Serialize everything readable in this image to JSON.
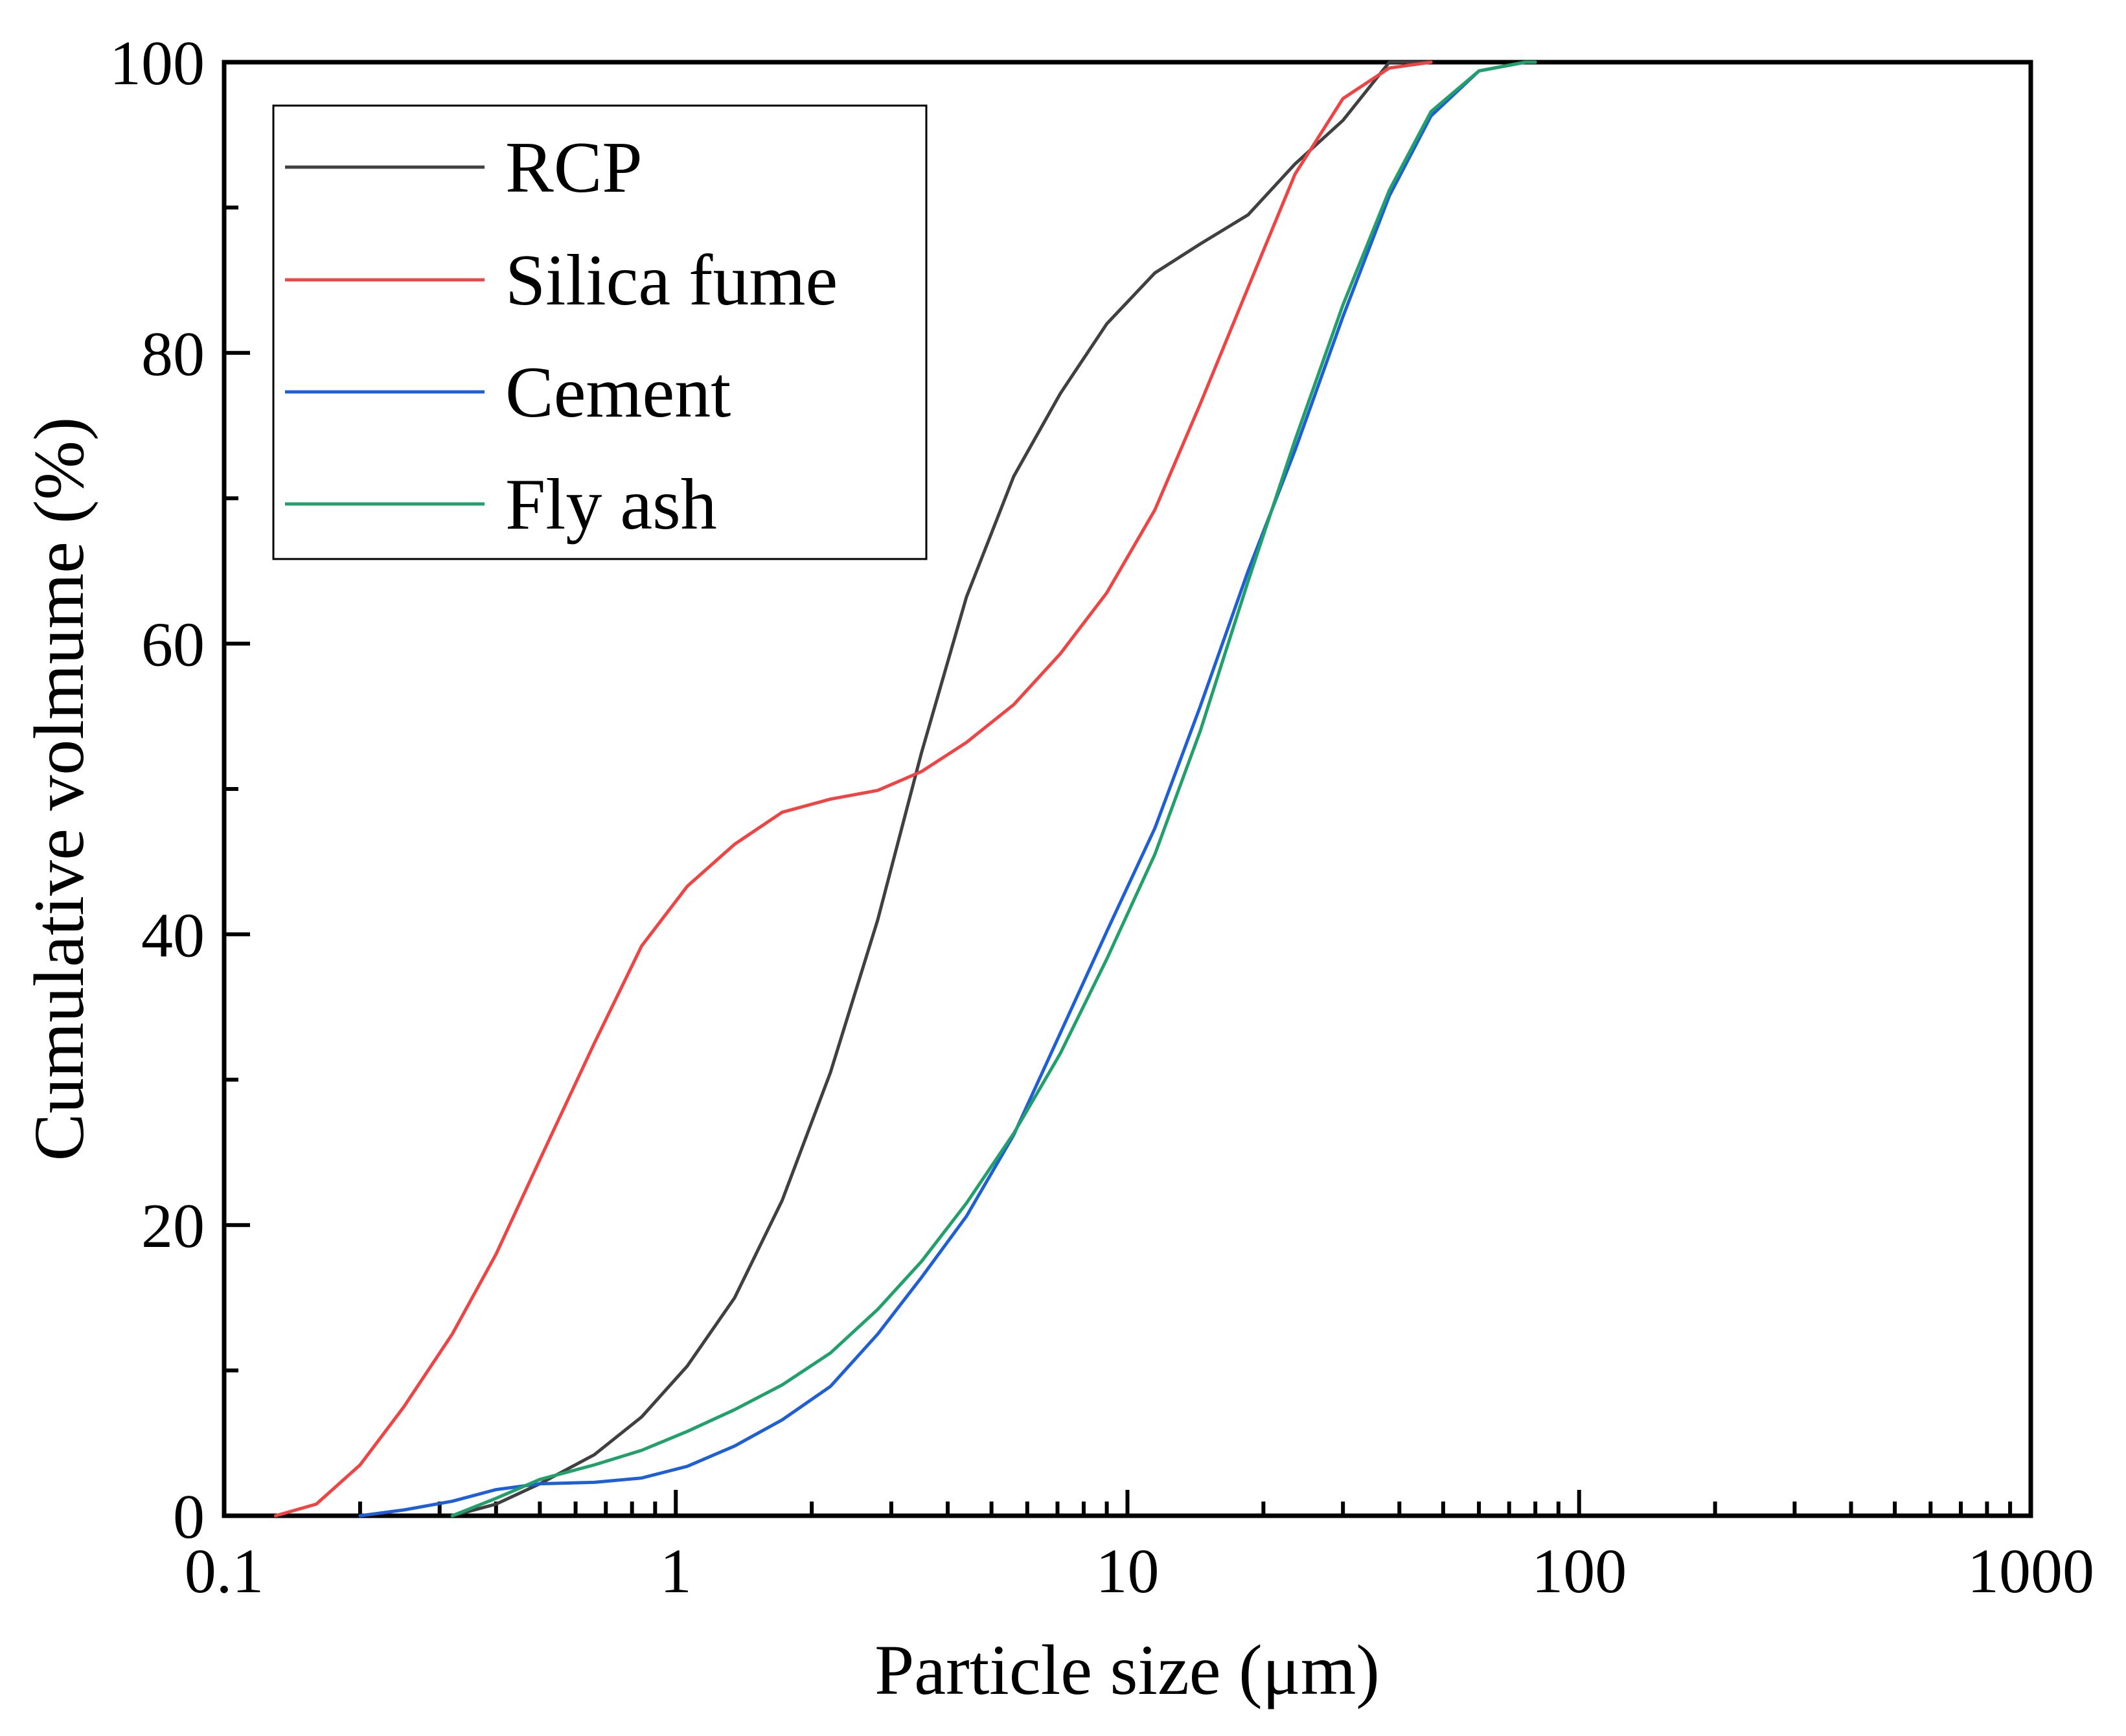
{
  "chart_data": {
    "type": "line",
    "xlabel": "Particle size (μm)",
    "ylabel": "Cumulative volmume (%)",
    "x_scale": "log",
    "xlim": [
      0.1,
      1000
    ],
    "ylim": [
      0,
      100
    ],
    "x_ticks": [
      {
        "value": 0.1,
        "label": "0.1"
      },
      {
        "value": 1,
        "label": "1"
      },
      {
        "value": 10,
        "label": "10"
      },
      {
        "value": 100,
        "label": "100"
      },
      {
        "value": 1000,
        "label": "1000"
      }
    ],
    "y_ticks": [
      {
        "value": 0,
        "label": "0"
      },
      {
        "value": 20,
        "label": "20"
      },
      {
        "value": 40,
        "label": "40"
      },
      {
        "value": 60,
        "label": "60"
      },
      {
        "value": 80,
        "label": "80"
      },
      {
        "value": 100,
        "label": "100"
      }
    ],
    "grid": false,
    "legend_position": "top-left",
    "series": [
      {
        "name": "RCP",
        "color": "#404040",
        "points": [
          [
            0.32,
            0
          ],
          [
            0.4,
            0.8
          ],
          [
            0.5,
            2.2
          ],
          [
            0.66,
            4.2
          ],
          [
            0.84,
            6.8
          ],
          [
            1.06,
            10.3
          ],
          [
            1.35,
            15.0
          ],
          [
            1.72,
            21.7
          ],
          [
            2.2,
            30.5
          ],
          [
            2.8,
            41.0
          ],
          [
            3.5,
            52.5
          ],
          [
            4.4,
            63.2
          ],
          [
            5.6,
            71.5
          ],
          [
            7.1,
            77.2
          ],
          [
            9.0,
            82.0
          ],
          [
            11.5,
            85.5
          ],
          [
            14.5,
            87.5
          ],
          [
            18.5,
            89.5
          ],
          [
            23.5,
            93.0
          ],
          [
            30,
            96.0
          ],
          [
            38,
            100
          ],
          [
            47,
            100
          ]
        ]
      },
      {
        "name": "Silica fume",
        "color": "#ef4444",
        "points": [
          [
            0.13,
            0
          ],
          [
            0.16,
            0.8
          ],
          [
            0.2,
            3.5
          ],
          [
            0.25,
            7.5
          ],
          [
            0.32,
            12.5
          ],
          [
            0.4,
            18.0
          ],
          [
            0.5,
            24.5
          ],
          [
            0.66,
            32.5
          ],
          [
            0.84,
            39.2
          ],
          [
            1.06,
            43.3
          ],
          [
            1.35,
            46.2
          ],
          [
            1.72,
            48.4
          ],
          [
            2.2,
            49.3
          ],
          [
            2.8,
            49.9
          ],
          [
            3.5,
            51.2
          ],
          [
            4.4,
            53.2
          ],
          [
            5.6,
            55.8
          ],
          [
            7.1,
            59.3
          ],
          [
            9.0,
            63.5
          ],
          [
            11.5,
            69.2
          ],
          [
            14.5,
            76.5
          ],
          [
            18.5,
            84.5
          ],
          [
            23.5,
            92.3
          ],
          [
            30,
            97.5
          ],
          [
            38,
            99.6
          ],
          [
            47,
            100
          ]
        ]
      },
      {
        "name": "Cement",
        "color": "#1f5fd6",
        "points": [
          [
            0.2,
            0
          ],
          [
            0.25,
            0.4
          ],
          [
            0.32,
            1.0
          ],
          [
            0.4,
            1.8
          ],
          [
            0.5,
            2.2
          ],
          [
            0.66,
            2.3
          ],
          [
            0.84,
            2.6
          ],
          [
            1.06,
            3.4
          ],
          [
            1.35,
            4.8
          ],
          [
            1.72,
            6.6
          ],
          [
            2.2,
            8.9
          ],
          [
            2.8,
            12.5
          ],
          [
            3.5,
            16.4
          ],
          [
            4.4,
            20.6
          ],
          [
            5.6,
            26.2
          ],
          [
            7.1,
            33.2
          ],
          [
            9.0,
            40.2
          ],
          [
            11.5,
            47.3
          ],
          [
            14.5,
            55.7
          ],
          [
            18.5,
            65.0
          ],
          [
            23.5,
            73.3
          ],
          [
            30,
            82.5
          ],
          [
            38,
            90.8
          ],
          [
            47,
            96.3
          ],
          [
            60,
            99.4
          ],
          [
            76,
            100
          ],
          [
            80,
            100
          ]
        ]
      },
      {
        "name": "Fly ash",
        "color": "#22a06b",
        "points": [
          [
            0.32,
            0
          ],
          [
            0.4,
            1.2
          ],
          [
            0.5,
            2.5
          ],
          [
            0.66,
            3.5
          ],
          [
            0.84,
            4.5
          ],
          [
            1.06,
            5.8
          ],
          [
            1.35,
            7.3
          ],
          [
            1.72,
            9.0
          ],
          [
            2.2,
            11.2
          ],
          [
            2.8,
            14.2
          ],
          [
            3.5,
            17.5
          ],
          [
            4.4,
            21.5
          ],
          [
            5.6,
            26.3
          ],
          [
            7.1,
            31.8
          ],
          [
            9.0,
            38.3
          ],
          [
            11.5,
            45.5
          ],
          [
            14.5,
            54.0
          ],
          [
            18.5,
            64.3
          ],
          [
            23.5,
            74.0
          ],
          [
            30,
            83.3
          ],
          [
            38,
            91.2
          ],
          [
            47,
            96.6
          ],
          [
            60,
            99.4
          ],
          [
            76,
            100
          ],
          [
            80,
            100
          ]
        ]
      }
    ]
  }
}
